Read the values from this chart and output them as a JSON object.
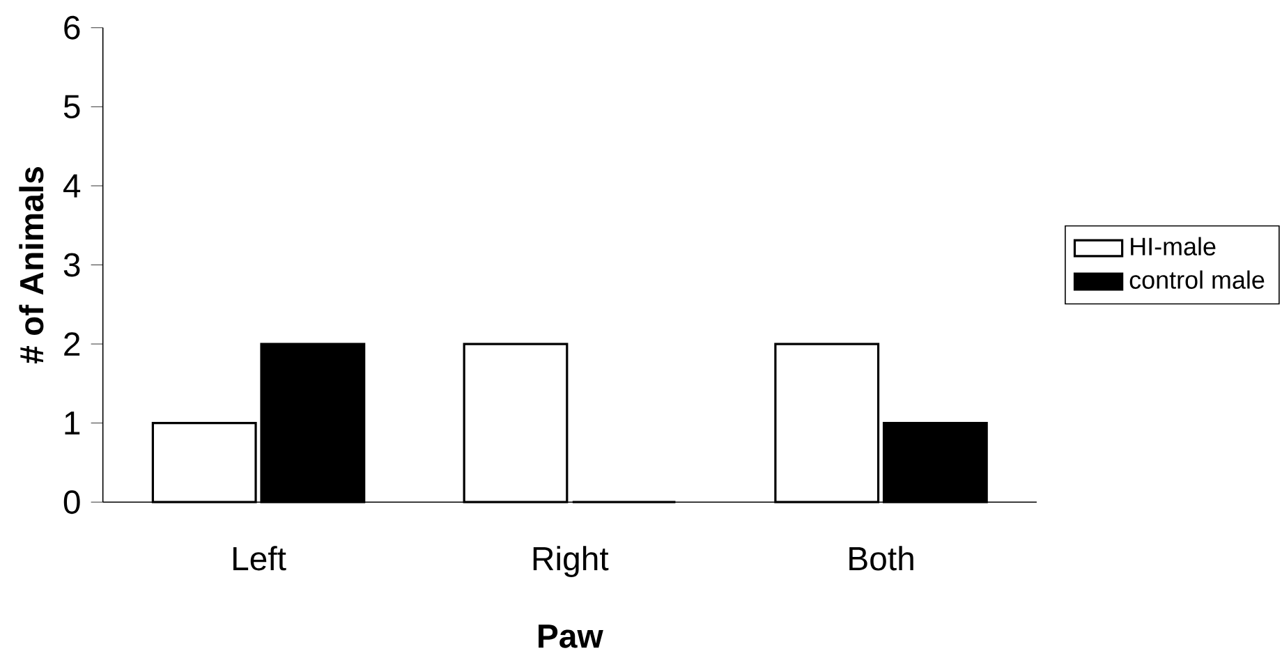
{
  "chart_data": {
    "type": "bar",
    "xlabel": "Paw",
    "ylabel": "# of Animals",
    "categories": [
      "Left",
      "Right",
      "Both"
    ],
    "series": [
      {
        "name": "HI-male",
        "color": "#ffffff",
        "values": [
          1,
          2,
          2
        ]
      },
      {
        "name": "control male",
        "color": "#000000",
        "values": [
          2,
          0,
          1
        ]
      }
    ],
    "ylim": [
      0,
      6
    ],
    "yticks": [
      0,
      1,
      2,
      3,
      4,
      5,
      6
    ],
    "grid": false,
    "legend": "right"
  }
}
